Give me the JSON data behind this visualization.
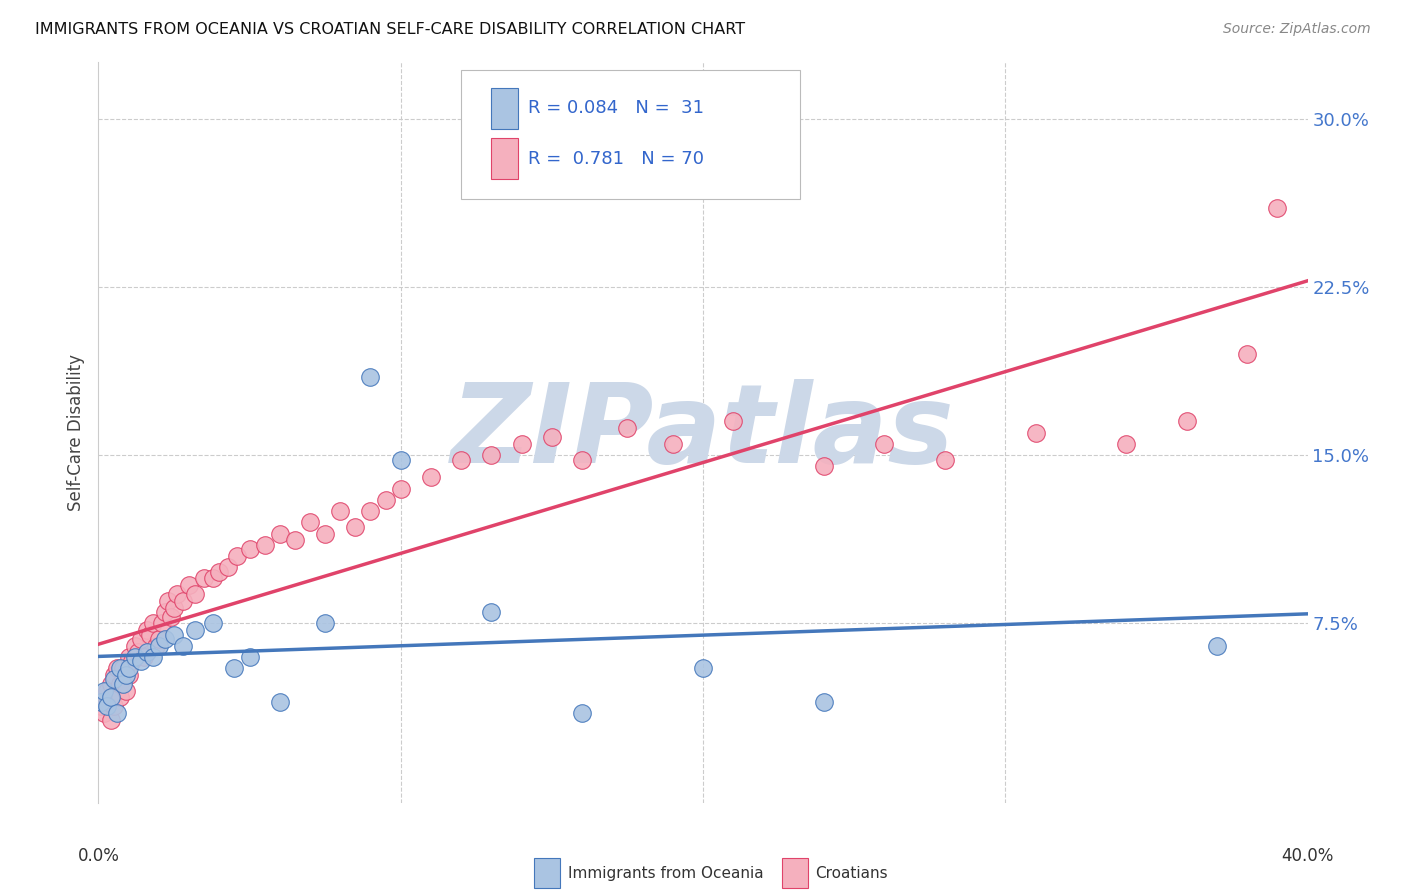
{
  "title": "IMMIGRANTS FROM OCEANIA VS CROATIAN SELF-CARE DISABILITY CORRELATION CHART",
  "source": "Source: ZipAtlas.com",
  "ylabel": "Self-Care Disability",
  "ytick_values": [
    0.0,
    0.075,
    0.15,
    0.225,
    0.3
  ],
  "xlim": [
    0.0,
    0.4
  ],
  "ylim": [
    -0.005,
    0.325
  ],
  "color_oceania": "#aac4e2",
  "color_croatian": "#f5b0be",
  "line_color_oceania": "#4477bb",
  "line_color_croatian": "#e0436a",
  "watermark_color": "#ccd8e8",
  "background_color": "#ffffff",
  "oceania_x": [
    0.001,
    0.002,
    0.003,
    0.004,
    0.005,
    0.006,
    0.007,
    0.008,
    0.009,
    0.01,
    0.012,
    0.014,
    0.016,
    0.018,
    0.02,
    0.022,
    0.025,
    0.028,
    0.032,
    0.038,
    0.045,
    0.05,
    0.06,
    0.075,
    0.09,
    0.1,
    0.13,
    0.16,
    0.2,
    0.24,
    0.37
  ],
  "oceania_y": [
    0.04,
    0.045,
    0.038,
    0.042,
    0.05,
    0.035,
    0.055,
    0.048,
    0.052,
    0.055,
    0.06,
    0.058,
    0.062,
    0.06,
    0.065,
    0.068,
    0.07,
    0.065,
    0.072,
    0.075,
    0.055,
    0.06,
    0.04,
    0.075,
    0.185,
    0.148,
    0.08,
    0.035,
    0.055,
    0.04,
    0.065
  ],
  "croatian_x": [
    0.001,
    0.002,
    0.002,
    0.003,
    0.003,
    0.004,
    0.004,
    0.005,
    0.005,
    0.006,
    0.006,
    0.007,
    0.007,
    0.008,
    0.008,
    0.009,
    0.01,
    0.01,
    0.011,
    0.012,
    0.013,
    0.014,
    0.015,
    0.016,
    0.017,
    0.018,
    0.019,
    0.02,
    0.021,
    0.022,
    0.023,
    0.024,
    0.025,
    0.026,
    0.028,
    0.03,
    0.032,
    0.035,
    0.038,
    0.04,
    0.043,
    0.046,
    0.05,
    0.055,
    0.06,
    0.065,
    0.07,
    0.075,
    0.08,
    0.085,
    0.09,
    0.095,
    0.1,
    0.11,
    0.12,
    0.13,
    0.14,
    0.15,
    0.16,
    0.175,
    0.19,
    0.21,
    0.24,
    0.26,
    0.28,
    0.31,
    0.34,
    0.36,
    0.38,
    0.39
  ],
  "croatian_y": [
    0.038,
    0.042,
    0.035,
    0.04,
    0.045,
    0.032,
    0.048,
    0.038,
    0.052,
    0.045,
    0.055,
    0.042,
    0.048,
    0.05,
    0.055,
    0.045,
    0.052,
    0.06,
    0.058,
    0.065,
    0.062,
    0.068,
    0.06,
    0.072,
    0.07,
    0.075,
    0.065,
    0.068,
    0.075,
    0.08,
    0.085,
    0.078,
    0.082,
    0.088,
    0.085,
    0.092,
    0.088,
    0.095,
    0.095,
    0.098,
    0.1,
    0.105,
    0.108,
    0.11,
    0.115,
    0.112,
    0.12,
    0.115,
    0.125,
    0.118,
    0.125,
    0.13,
    0.135,
    0.14,
    0.148,
    0.15,
    0.155,
    0.158,
    0.148,
    0.162,
    0.155,
    0.165,
    0.145,
    0.155,
    0.148,
    0.16,
    0.155,
    0.165,
    0.195,
    0.26
  ],
  "reg_oceania": [
    0.0545,
    0.06
  ],
  "reg_croatian": [
    0.03,
    0.205
  ],
  "legend_text1": "R = 0.084   N =  31",
  "legend_text2": "R =  0.781   N = 70"
}
